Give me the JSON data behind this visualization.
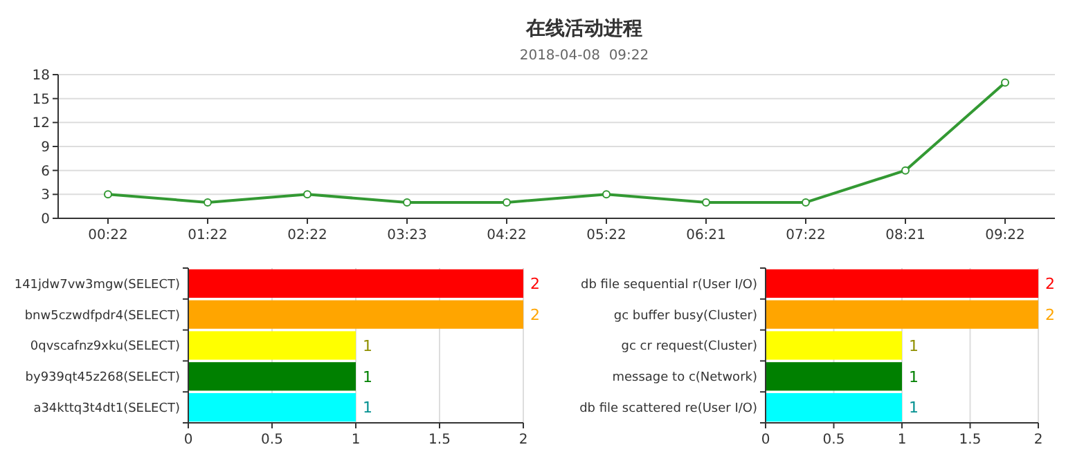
{
  "chart_data": [
    {
      "type": "line",
      "title": "在线活动进程",
      "subtitle": "2018-04-08  09:22",
      "categories": [
        "00:22",
        "01:22",
        "02:22",
        "03:23",
        "04:22",
        "05:22",
        "06:21",
        "07:22",
        "08:21",
        "09:22"
      ],
      "series": [
        {
          "color": "#339933",
          "values": [
            3,
            2,
            3,
            2,
            2,
            3,
            2,
            2,
            6,
            17
          ]
        }
      ],
      "ylim": [
        0,
        18
      ],
      "yticks": [
        0,
        3,
        6,
        9,
        12,
        15,
        18
      ],
      "grid": "y",
      "marker": "circle"
    },
    {
      "type": "bar",
      "orientation": "horizontal",
      "categories": [
        "141jdw7vw3mgw(SELECT)",
        "bnw5czwdfpdr4(SELECT)",
        "0qvscafnz9xku(SELECT)",
        "by939qt45z268(SELECT)",
        "a34kttq3t4dt1(SELECT)"
      ],
      "values": [
        2,
        2,
        1,
        1,
        1
      ],
      "colors": [
        "#ff0000",
        "#ffa500",
        "#ffff00",
        "#008000",
        "#00ffff"
      ],
      "xlim": [
        0,
        2
      ],
      "xticks": [
        0,
        0.5,
        1,
        1.5,
        2
      ],
      "grid": "x",
      "data_labels": true
    },
    {
      "type": "bar",
      "orientation": "horizontal",
      "categories": [
        "db file sequential r(User I/O)",
        "gc buffer busy(Cluster)",
        "gc cr request(Cluster)",
        "message to c(Network)",
        "db file scattered re(User I/O)"
      ],
      "values": [
        2,
        2,
        1,
        1,
        1
      ],
      "colors": [
        "#ff0000",
        "#ffa500",
        "#ffff00",
        "#008000",
        "#00ffff"
      ],
      "xlim": [
        0,
        2
      ],
      "xticks": [
        0,
        0.5,
        1,
        1.5,
        2
      ],
      "grid": "x",
      "data_labels": true
    }
  ]
}
